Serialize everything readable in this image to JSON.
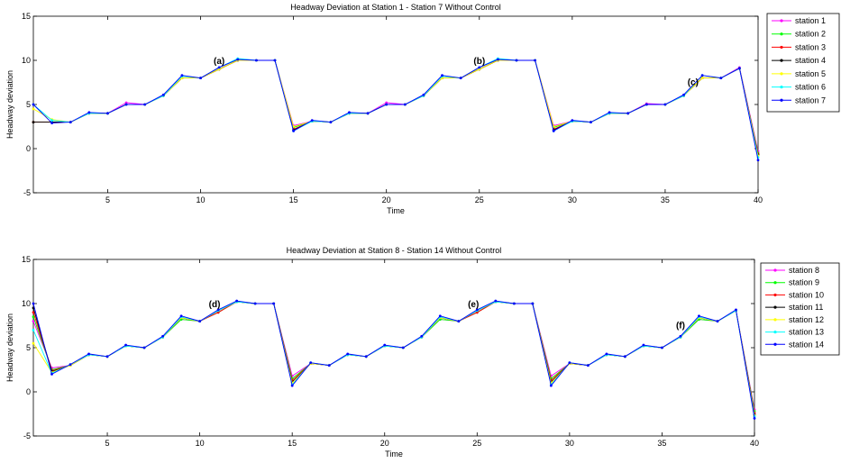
{
  "chart_data": [
    {
      "type": "line",
      "title": "Headway Deviation at Station 1 - Station 7  Without Control",
      "xlabel": "Time",
      "ylabel": "Headway deviation",
      "xlim": [
        1,
        40
      ],
      "ylim": [
        -5,
        15
      ],
      "xticks": [
        5,
        10,
        15,
        20,
        25,
        30,
        35,
        40
      ],
      "yticks": [
        -5,
        0,
        5,
        10,
        15
      ],
      "grid": false,
      "legend_placement": "outside-right",
      "x": [
        1,
        2,
        3,
        4,
        5,
        6,
        7,
        8,
        9,
        10,
        11,
        12,
        13,
        14,
        15,
        16,
        17,
        18,
        19,
        20,
        21,
        22,
        23,
        24,
        25,
        26,
        27,
        28,
        29,
        30,
        31,
        32,
        33,
        34,
        35,
        36,
        37,
        38,
        39,
        40
      ],
      "annotations": [
        {
          "text": "(a)",
          "x": 11,
          "y": 9.6
        },
        {
          "text": "(b)",
          "x": 25,
          "y": 9.6
        },
        {
          "text": "(c)",
          "x": 36.5,
          "y": 7.2
        }
      ],
      "series": [
        {
          "name": "station 1",
          "color": "#ff00ff",
          "values": [
            3,
            3,
            3,
            4,
            4,
            5.2,
            5,
            6,
            8,
            8,
            9,
            10,
            10,
            10,
            2.6,
            3.1,
            3,
            4,
            4,
            5.2,
            5,
            6,
            8,
            8,
            9,
            10,
            10,
            10,
            2.6,
            3.1,
            3,
            4,
            4,
            5.1,
            5,
            6,
            8,
            8,
            9.2,
            -0.3
          ]
        },
        {
          "name": "station 2",
          "color": "#00ff00",
          "values": [
            3,
            3,
            3,
            4,
            4,
            5,
            5,
            6,
            8,
            8,
            9,
            10,
            10,
            10,
            2.4,
            3.1,
            3,
            4,
            4,
            5,
            5,
            6,
            8,
            8,
            9,
            10,
            10,
            10,
            2.4,
            3.1,
            3,
            4,
            4,
            5,
            5,
            6,
            8,
            8,
            9.1,
            -0.5
          ]
        },
        {
          "name": "station 3",
          "color": "#ff0000",
          "values": [
            3,
            3,
            3,
            4,
            4,
            5,
            5,
            6,
            8,
            8,
            9,
            10,
            10,
            10,
            2.2,
            3.1,
            3,
            4,
            4,
            5,
            5,
            6,
            8,
            8,
            9,
            10,
            10,
            10,
            2.2,
            3.1,
            3,
            4,
            4,
            5,
            5,
            6,
            8,
            8,
            9.1,
            -0.6
          ]
        },
        {
          "name": "station 4",
          "color": "#000000",
          "values": [
            3,
            3,
            3,
            4,
            4,
            5,
            5,
            6,
            8,
            8,
            9,
            10,
            10,
            10,
            2.1,
            3.1,
            3,
            4,
            4,
            5,
            5,
            6,
            8,
            8,
            9,
            10,
            10,
            10,
            2.1,
            3.1,
            3,
            4,
            4,
            5,
            5,
            6,
            8,
            8,
            9.1,
            -0.7
          ]
        },
        {
          "name": "station 5",
          "color": "#ffff00",
          "values": [
            4.5,
            3.3,
            3,
            4,
            4,
            5,
            5,
            6,
            8,
            8,
            9,
            10,
            10,
            10,
            2.5,
            3.1,
            3,
            4,
            4,
            5,
            5,
            6,
            8,
            8,
            9,
            10,
            10,
            10,
            2.5,
            3.1,
            3,
            4,
            4,
            5,
            5,
            6,
            8,
            8,
            9.1,
            -0.8
          ]
        },
        {
          "name": "station 6",
          "color": "#00ffff",
          "values": [
            5,
            3.2,
            3,
            4,
            4,
            5,
            5,
            6,
            8.2,
            8,
            9.2,
            10.2,
            10,
            10,
            2.0,
            3.1,
            3,
            4,
            4,
            5,
            5,
            6,
            8.2,
            8,
            9.2,
            10.2,
            10,
            10,
            2.0,
            3.1,
            3,
            4,
            4,
            5,
            5,
            6,
            8.3,
            8,
            9.1,
            -1.0
          ]
        },
        {
          "name": "station 7",
          "color": "#0000ff",
          "values": [
            5,
            2.9,
            3,
            4.1,
            4,
            5,
            5,
            6.1,
            8.3,
            8,
            9.2,
            10.1,
            10,
            10,
            2.0,
            3.2,
            3,
            4.1,
            4,
            5,
            5,
            6.1,
            8.3,
            8,
            9.2,
            10.1,
            10,
            10,
            2.0,
            3.2,
            3,
            4.1,
            4,
            5,
            5,
            6.1,
            8.3,
            8,
            9.1,
            -1.3
          ]
        }
      ]
    },
    {
      "type": "line",
      "title": "Headway Deviation at Station 8 - Station 14  Without Control",
      "xlabel": "Time",
      "ylabel": "Headway deviation",
      "xlim": [
        1,
        40
      ],
      "ylim": [
        -5,
        15
      ],
      "xticks": [
        5,
        10,
        15,
        20,
        25,
        30,
        35,
        40
      ],
      "yticks": [
        -5,
        0,
        5,
        10,
        15
      ],
      "grid": false,
      "legend_placement": "outside-right",
      "x": [
        1,
        2,
        3,
        4,
        5,
        6,
        7,
        8,
        9,
        10,
        11,
        12,
        13,
        14,
        15,
        16,
        17,
        18,
        19,
        20,
        21,
        22,
        23,
        24,
        25,
        26,
        27,
        28,
        29,
        30,
        31,
        32,
        33,
        34,
        35,
        36,
        37,
        38,
        39,
        40
      ],
      "annotations": [
        {
          "text": "(d)",
          "x": 10.8,
          "y": 9.6
        },
        {
          "text": "(e)",
          "x": 24.8,
          "y": 9.6
        },
        {
          "text": "(f)",
          "x": 36,
          "y": 7.2
        }
      ],
      "series": [
        {
          "name": "station 8",
          "color": "#ff00ff",
          "values": [
            8,
            2.7,
            3,
            4.2,
            4,
            5.2,
            5,
            6.2,
            8.2,
            8,
            9,
            10.2,
            10,
            10,
            1.8,
            3.2,
            3,
            4.2,
            4,
            5.2,
            5,
            6.2,
            8.2,
            8,
            9,
            10.2,
            10,
            10,
            1.8,
            3.2,
            3,
            4.2,
            4,
            5.2,
            5,
            6.2,
            8.2,
            8,
            9.2,
            -2.0
          ]
        },
        {
          "name": "station 9",
          "color": "#00ff00",
          "values": [
            8.5,
            2.5,
            3,
            4.2,
            4,
            5.2,
            5,
            6.2,
            8.2,
            8,
            9,
            10.2,
            10,
            10,
            1.5,
            3.2,
            3,
            4.2,
            4,
            5.2,
            5,
            6.2,
            8.2,
            8,
            9,
            10.2,
            10,
            10,
            1.5,
            3.2,
            3,
            4.2,
            4,
            5.2,
            5,
            6.2,
            8.2,
            8,
            9.2,
            -2.2
          ]
        },
        {
          "name": "station 10",
          "color": "#ff0000",
          "values": [
            9,
            2.4,
            3,
            4.2,
            4,
            5.2,
            5,
            6.2,
            8.4,
            8,
            9,
            10.2,
            10,
            10,
            1.3,
            3.2,
            3,
            4.2,
            4,
            5.2,
            5,
            6.2,
            8.4,
            8,
            9,
            10.2,
            10,
            10,
            1.3,
            3.2,
            3,
            4.2,
            4,
            5.2,
            5,
            6.2,
            8.4,
            8,
            9.2,
            -2.4
          ]
        },
        {
          "name": "station 11",
          "color": "#000000",
          "values": [
            9.5,
            2.3,
            3,
            4.2,
            4,
            5.2,
            5,
            6.2,
            8.4,
            8,
            9.2,
            10.2,
            10,
            10,
            1.1,
            3.2,
            3,
            4.2,
            4,
            5.2,
            5,
            6.2,
            8.4,
            8,
            9.2,
            10.2,
            10,
            10,
            1.1,
            3.2,
            3,
            4.2,
            4,
            5.2,
            5,
            6.2,
            8.4,
            8,
            9.2,
            -2.6
          ]
        },
        {
          "name": "station 12",
          "color": "#ffff00",
          "values": [
            5.5,
            2.2,
            3,
            4.2,
            4,
            5.2,
            5,
            6.2,
            8.4,
            8,
            9.2,
            10.2,
            10,
            10,
            1.0,
            3.2,
            3,
            4.2,
            4,
            5.2,
            5,
            6.2,
            8.4,
            8,
            9.2,
            10.2,
            10,
            10,
            1.0,
            3.2,
            3,
            4.2,
            4,
            5.2,
            5,
            6.2,
            8.4,
            8,
            9.2,
            -2.7
          ]
        },
        {
          "name": "station 13",
          "color": "#00ffff",
          "values": [
            7,
            2.1,
            3.1,
            4.2,
            4,
            5.2,
            5,
            6.2,
            8.5,
            8,
            9.2,
            10.2,
            10,
            10,
            0.8,
            3.3,
            3,
            4.2,
            4,
            5.2,
            5,
            6.2,
            8.5,
            8,
            9.2,
            10.2,
            10,
            10,
            0.8,
            3.3,
            3,
            4.2,
            4,
            5.2,
            5,
            6.2,
            8.5,
            8,
            9.2,
            -2.8
          ]
        },
        {
          "name": "station 14",
          "color": "#0000ff",
          "values": [
            10,
            2.0,
            3.1,
            4.3,
            4,
            5.3,
            5,
            6.3,
            8.6,
            8,
            9.3,
            10.3,
            10,
            10,
            0.7,
            3.3,
            3,
            4.3,
            4,
            5.3,
            5,
            6.3,
            8.6,
            8,
            9.3,
            10.3,
            10,
            10,
            0.7,
            3.3,
            3,
            4.3,
            4,
            5.3,
            5,
            6.3,
            8.6,
            8,
            9.3,
            -3.0
          ]
        }
      ]
    }
  ]
}
